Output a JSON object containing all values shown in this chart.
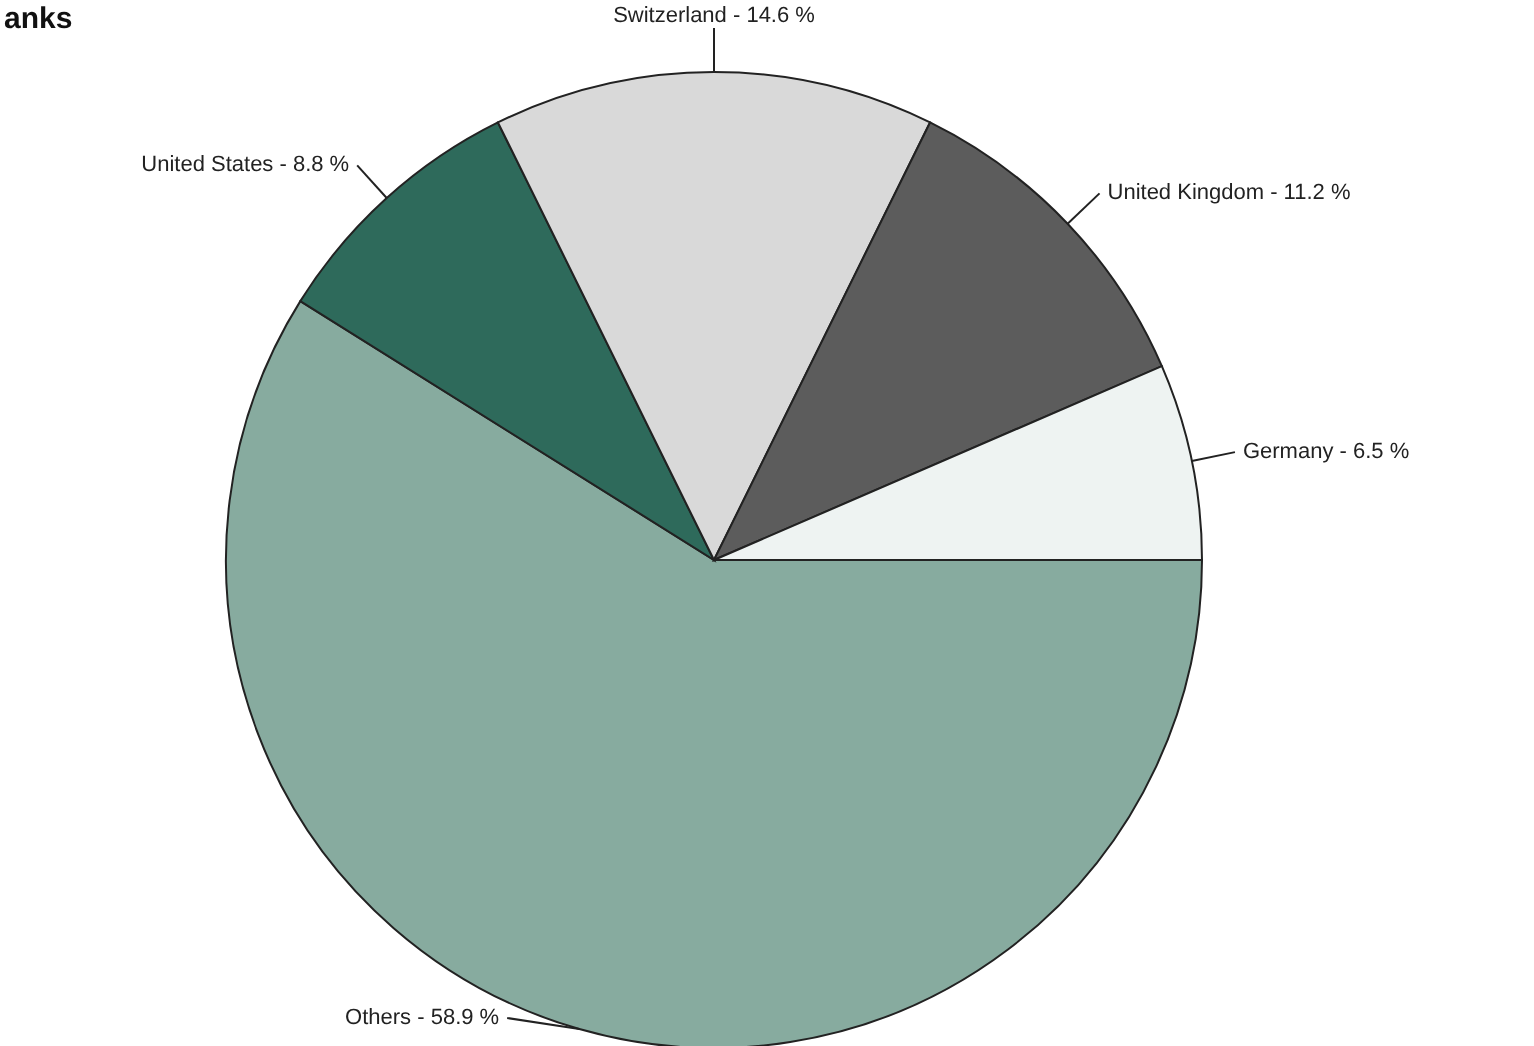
{
  "chart_data": {
    "type": "pie",
    "title": "anks",
    "categories": [
      "Others - 58.9 %",
      "United States - 8.8 %",
      "Switzerland - 14.6 %",
      "United Kingdom - 11.2 %",
      "Germany - 6.5 %"
    ],
    "values": [
      58.9,
      8.8,
      14.6,
      11.2,
      6.5
    ],
    "colors": [
      "#87ab9f",
      "#2e6a5b",
      "#d9d9d9",
      "#5c5c5c",
      "#eef3f2"
    ]
  }
}
